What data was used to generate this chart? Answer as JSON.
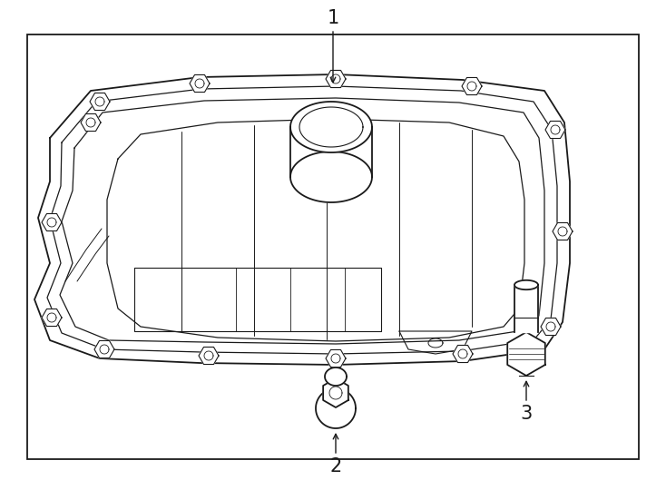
{
  "bg_color": "#ffffff",
  "line_color": "#1a1a1a",
  "label_1": "1",
  "label_2": "2",
  "label_3": "3",
  "fig_width": 7.34,
  "fig_height": 5.4,
  "dpi": 100
}
